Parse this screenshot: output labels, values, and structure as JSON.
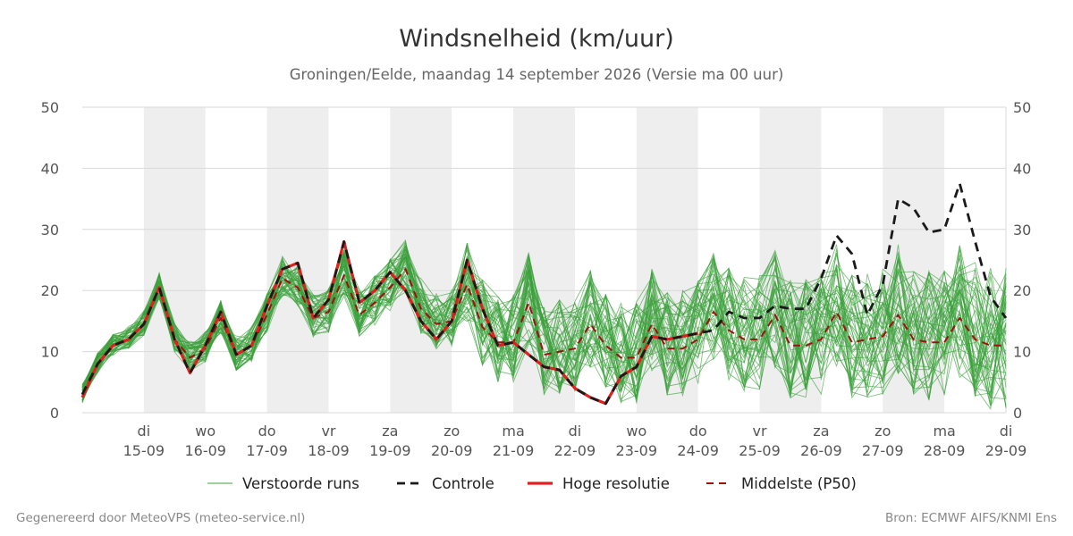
{
  "chart_data": {
    "type": "line",
    "title": "Windsnelheid (km/uur)",
    "subtitle": "Groningen/Eelde, maandag 14 september 2026 (Versie ma 00 uur)",
    "ylim": [
      0,
      50
    ],
    "yticks": [
      0,
      10,
      20,
      30,
      40,
      50
    ],
    "xlim": [
      0,
      15
    ],
    "day_ticks": [
      {
        "day": "di",
        "date": "15-09"
      },
      {
        "day": "wo",
        "date": "16-09"
      },
      {
        "day": "do",
        "date": "17-09"
      },
      {
        "day": "vr",
        "date": "18-09"
      },
      {
        "day": "za",
        "date": "19-09"
      },
      {
        "day": "zo",
        "date": "20-09"
      },
      {
        "day": "ma",
        "date": "21-09"
      },
      {
        "day": "di",
        "date": "22-09"
      },
      {
        "day": "wo",
        "date": "23-09"
      },
      {
        "day": "do",
        "date": "24-09"
      },
      {
        "day": "vr",
        "date": "25-09"
      },
      {
        "day": "za",
        "date": "26-09"
      },
      {
        "day": "zo",
        "date": "27-09"
      },
      {
        "day": "ma",
        "date": "28-09"
      },
      {
        "day": "di",
        "date": "29-09"
      }
    ],
    "shaded_days": [
      1,
      3,
      5,
      7,
      9,
      11,
      13
    ],
    "legend": [
      {
        "label": "Verstoorde runs",
        "style": "thin-green"
      },
      {
        "label": "Controle",
        "style": "dashed-black"
      },
      {
        "label": "Hoge resolutie",
        "style": "solid-red"
      },
      {
        "label": "Middelste (P50)",
        "style": "dashed-darkred"
      }
    ],
    "colors": {
      "ensemble": "#3aa03a",
      "control": "#1a1a1a",
      "hires": "#e02020",
      "median": "#a01010",
      "shade": "#eeeeee",
      "grid": "#d9d9d9"
    },
    "ensemble_count": 50,
    "series": [
      {
        "name": "Controle",
        "x": [
          0,
          0.25,
          0.5,
          0.75,
          1,
          1.25,
          1.5,
          1.75,
          2,
          2.25,
          2.5,
          2.75,
          3,
          3.25,
          3.5,
          3.75,
          4,
          4.25,
          4.5,
          4.75,
          5,
          5.25,
          5.5,
          5.75,
          6,
          6.25,
          6.5,
          6.75,
          7,
          7.25,
          7.5,
          7.75,
          8,
          8.25,
          8.5,
          8.75,
          9,
          9.25,
          9.5,
          9.75,
          10,
          10.25,
          10.5,
          10.75,
          11,
          11.25,
          11.5,
          11.75,
          12,
          12.25,
          12.5,
          12.75,
          13,
          13.25,
          13.5,
          13.75,
          14,
          14.25,
          14.5,
          14.75,
          15
        ],
        "values": [
          3,
          8,
          11,
          12,
          14.5,
          20.5,
          12,
          6.5,
          11,
          16.5,
          9.5,
          11,
          17.5,
          23.5,
          24.5,
          15.5,
          18.5,
          28,
          18,
          20,
          23,
          20,
          15,
          12,
          15,
          25,
          17,
          11,
          11.5,
          9.5,
          7.5,
          7,
          4,
          2.5,
          1.5,
          6,
          7.5,
          12.5,
          12,
          12.5,
          13,
          13.5,
          16.5,
          15.5,
          15.5,
          17.5,
          17,
          17,
          22,
          29,
          26,
          16,
          21,
          35,
          33.5,
          29.5,
          30,
          37.5,
          28,
          19,
          15.5
        ]
      },
      {
        "name": "Hoge resolutie",
        "x": [
          0,
          0.25,
          0.5,
          0.75,
          1,
          1.25,
          1.5,
          1.75,
          2,
          2.25,
          2.5,
          2.75,
          3,
          3.25,
          3.5,
          3.75,
          4,
          4.25,
          4.5,
          4.75,
          5,
          5.25,
          5.5,
          5.75,
          6,
          6.25,
          6.5,
          6.75,
          7,
          7.25,
          7.5,
          7.75,
          8,
          8.25,
          8.5,
          8.75,
          9,
          9.25,
          9.5,
          9.75,
          10
        ],
        "values": [
          2.5,
          8,
          11,
          12,
          14.5,
          20.5,
          12,
          6.5,
          11,
          16.5,
          9.5,
          11,
          17.5,
          23.5,
          24.5,
          15.5,
          18.5,
          28,
          18,
          20,
          23,
          20,
          15,
          12,
          15,
          25,
          17,
          11,
          11.5,
          9.5,
          7.5,
          7,
          4,
          2.5,
          1.5,
          6,
          7.5,
          12.5,
          12,
          12.5,
          13
        ]
      },
      {
        "name": "Middelste (P50)",
        "x": [
          0,
          0.25,
          0.5,
          0.75,
          1,
          1.25,
          1.5,
          1.75,
          2,
          2.25,
          2.5,
          2.75,
          3,
          3.25,
          3.5,
          3.75,
          4,
          4.25,
          4.5,
          4.75,
          5,
          5.25,
          5.5,
          5.75,
          6,
          6.25,
          6.5,
          6.75,
          7,
          7.25,
          7.5,
          7.75,
          8,
          8.25,
          8.5,
          8.75,
          9,
          9.25,
          9.5,
          9.75,
          10,
          10.25,
          10.5,
          10.75,
          11,
          11.25,
          11.5,
          11.75,
          12,
          12.25,
          12.5,
          12.75,
          13,
          13.25,
          13.5,
          13.75,
          14,
          14.25,
          14.5,
          14.75,
          15
        ],
        "values": [
          3,
          8,
          11,
          12,
          14.5,
          20.5,
          12,
          9,
          10.5,
          15.5,
          9.5,
          11,
          16,
          22,
          20.5,
          15.5,
          16.5,
          22.5,
          16,
          18,
          20.5,
          23.5,
          17,
          14.5,
          15,
          21,
          14,
          11.5,
          11.5,
          18,
          9.5,
          10,
          10.5,
          14.5,
          11,
          9,
          9,
          14.5,
          10.5,
          10.5,
          12,
          16.5,
          13.5,
          12,
          12,
          16,
          11,
          11,
          12,
          16.5,
          11.5,
          12,
          12.5,
          16,
          12,
          11.5,
          11.5,
          15.5,
          12,
          11,
          11
        ]
      }
    ]
  },
  "footer": {
    "left": "Gegenereerd door MeteoVPS (meteo-service.nl)",
    "right": "Bron: ECMWF AIFS/KNMI Ens"
  }
}
